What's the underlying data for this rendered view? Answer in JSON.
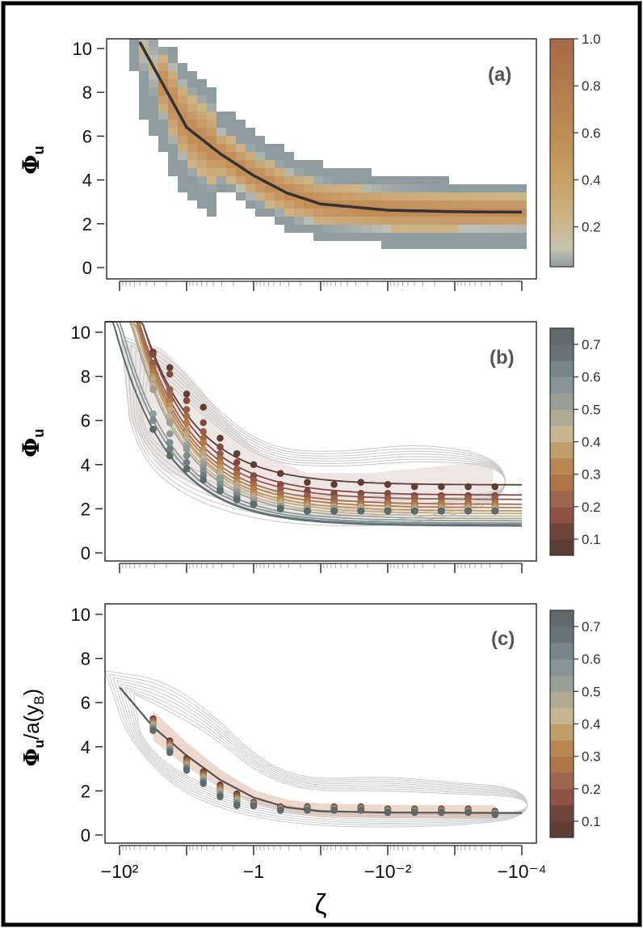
{
  "chart_data": [
    {
      "type": "heatmap",
      "panel_label": "(a)",
      "ylabel": "Φu",
      "xscale": "negative-log",
      "xlim_exponent": [
        2.3,
        -4.0
      ],
      "ylim": [
        0,
        10.3
      ],
      "yticks": [
        0,
        2,
        4,
        6,
        8,
        10
      ],
      "grid": false,
      "colorbar": {
        "ticks": [
          "0.2",
          "0.4",
          "0.6",
          "0.8",
          "1.0"
        ],
        "range": [
          0.03,
          1.0
        ],
        "palette": "grey-to-brown"
      },
      "fit_curve": {
        "zeta_exponent": [
          1.7,
          1.0,
          0.5,
          0,
          -0.5,
          -1,
          -2,
          -3,
          -4
        ],
        "phi": [
          10.3,
          6.4,
          5.2,
          4.2,
          3.4,
          2.9,
          2.62,
          2.55,
          2.53
        ]
      }
    },
    {
      "type": "line",
      "panel_label": "(b)",
      "ylabel": "Φu",
      "xscale": "negative-log",
      "ylim": [
        0,
        10.3
      ],
      "yticks": [
        0,
        2,
        4,
        6,
        8,
        10
      ],
      "grid": false,
      "colorbar": {
        "ticks": [
          "0.1",
          "0.2",
          "0.3",
          "0.4",
          "0.5",
          "0.6",
          "0.7"
        ],
        "range": [
          0.05,
          0.75
        ],
        "palette": "brown-to-grey"
      },
      "series": [
        {
          "class": 0.1,
          "plateau": 3.08,
          "points": [
            9.1,
            8.4,
            7.2,
            6.6,
            5.2,
            4.5,
            4.0,
            3.6,
            3.2,
            3.1,
            3.2,
            3.1,
            3.0,
            3.0,
            3.0,
            3.0
          ]
        },
        {
          "class": 0.15,
          "plateau": 2.62,
          "points": [
            9.0,
            8.1,
            6.9,
            5.9,
            4.8,
            4.1,
            3.5,
            3.1,
            2.8,
            2.7,
            2.7,
            2.7,
            2.6,
            2.6,
            2.6,
            2.6
          ]
        },
        {
          "class": 0.2,
          "plateau": 2.42,
          "points": [
            8.6,
            7.4,
            6.5,
            5.5,
            4.5,
            3.8,
            3.3,
            2.9,
            2.6,
            2.5,
            2.5,
            2.5,
            2.5,
            2.5,
            2.5,
            2.5
          ]
        },
        {
          "class": 0.25,
          "plateau": 2.2,
          "points": [
            8.4,
            7.2,
            6.2,
            5.2,
            4.3,
            3.6,
            3.1,
            2.7,
            2.4,
            2.3,
            2.3,
            2.3,
            2.3,
            2.3,
            2.3,
            2.3
          ]
        },
        {
          "class": 0.3,
          "plateau": 2.05,
          "points": [
            8.2,
            6.9,
            5.9,
            5.0,
            4.1,
            3.4,
            2.9,
            2.5,
            2.3,
            2.2,
            2.2,
            2.2,
            2.2,
            2.2,
            2.2,
            2.2
          ]
        },
        {
          "class": 0.35,
          "plateau": 1.9,
          "points": [
            8.0,
            6.7,
            5.6,
            4.7,
            3.9,
            3.2,
            2.7,
            2.4,
            2.2,
            2.1,
            2.1,
            2.1,
            2.1,
            2.1,
            2.1,
            2.1
          ]
        },
        {
          "class": 0.4,
          "plateau": 1.78,
          "points": [
            7.9,
            6.5,
            5.4,
            4.5,
            3.7,
            3.1,
            2.6,
            2.3,
            2.1,
            2.1,
            2.1,
            2.0,
            2.0,
            2.0,
            2.0,
            2.0
          ]
        },
        {
          "class": 0.45,
          "plateau": 1.66,
          "points": [
            7.6,
            6.2,
            5.2,
            4.3,
            3.6,
            2.9,
            2.5,
            2.2,
            2.0,
            2.0,
            2.0,
            2.0,
            2.0,
            2.0,
            2.0,
            2.0
          ]
        },
        {
          "class": 0.5,
          "plateau": 1.55,
          "points": [
            7.4,
            5.9,
            4.9,
            4.1,
            3.4,
            2.8,
            2.4,
            2.1,
            2.0,
            2.0,
            1.9,
            1.9,
            1.9,
            1.9,
            1.9,
            1.9
          ]
        },
        {
          "class": 0.55,
          "plateau": 1.45,
          "points": [
            6.3,
            5.4,
            4.7,
            3.9,
            3.3,
            2.7,
            2.3,
            2.1,
            1.9,
            1.9,
            1.9,
            1.9,
            1.9,
            1.9,
            1.9,
            1.9
          ]
        },
        {
          "class": 0.6,
          "plateau": 1.35,
          "points": [
            6.0,
            5.0,
            4.4,
            3.7,
            3.1,
            2.6,
            2.2,
            2.0,
            1.9,
            1.9,
            1.9,
            1.9,
            1.9,
            1.9,
            1.9,
            1.9
          ]
        },
        {
          "class": 0.65,
          "plateau": 1.28,
          "points": [
            5.6,
            4.7,
            4.1,
            3.5,
            2.9,
            2.5,
            2.2,
            2.0,
            1.9,
            1.9,
            1.9,
            1.9,
            1.9,
            1.9,
            1.9,
            1.9
          ]
        },
        {
          "class": 0.7,
          "plateau": 1.22,
          "points": [
            5.6,
            4.4,
            3.8,
            3.3,
            2.8,
            2.4,
            2.2,
            2.0,
            1.9,
            1.9,
            1.9,
            1.9,
            1.9,
            1.9,
            1.9,
            1.9
          ]
        }
      ],
      "point_zeta_exponent": [
        1.5,
        1.25,
        1.0,
        0.75,
        0.5,
        0.25,
        0,
        -0.4,
        -0.8,
        -1.2,
        -1.6,
        -2.0,
        -2.4,
        -2.8,
        -3.2,
        -3.6
      ]
    },
    {
      "type": "line",
      "panel_label": "(c)",
      "xlabel": "ζ",
      "ylabel": "Φu/a(yB)",
      "xscale": "negative-log",
      "xtick_labels": [
        "−10²",
        "−1",
        "−10⁻²",
        "−10⁻⁴"
      ],
      "xtick_exponents": [
        2,
        0,
        -2,
        -4
      ],
      "ylim": [
        0,
        10.3
      ],
      "yticks": [
        0,
        2,
        4,
        6,
        8,
        10
      ],
      "grid": false,
      "colorbar": {
        "ticks": [
          "0.1",
          "0.2",
          "0.3",
          "0.4",
          "0.5",
          "0.6",
          "0.7"
        ],
        "range": [
          0.05,
          0.75
        ],
        "palette": "brown-to-grey"
      },
      "fit_curve": {
        "zeta_exponent": [
          2.0,
          1.5,
          1.0,
          0.5,
          0,
          -0.5,
          -1,
          -2,
          -3,
          -4
        ],
        "phi": [
          6.7,
          4.9,
          3.6,
          2.5,
          1.7,
          1.25,
          1.08,
          1.02,
          1.01,
          1.0
        ]
      },
      "point_zeta_exponent": [
        1.5,
        1.25,
        1.0,
        0.75,
        0.5,
        0.25,
        0,
        -0.4,
        -0.8,
        -1.2,
        -1.6,
        -2.0,
        -2.4,
        -2.8,
        -3.2,
        -3.6
      ],
      "points_mean": [
        5.0,
        4.0,
        3.2,
        2.6,
        2.0,
        1.6,
        1.4,
        1.2,
        1.2,
        1.2,
        1.2,
        1.1,
        1.1,
        1.1,
        1.1,
        1.0
      ]
    }
  ]
}
